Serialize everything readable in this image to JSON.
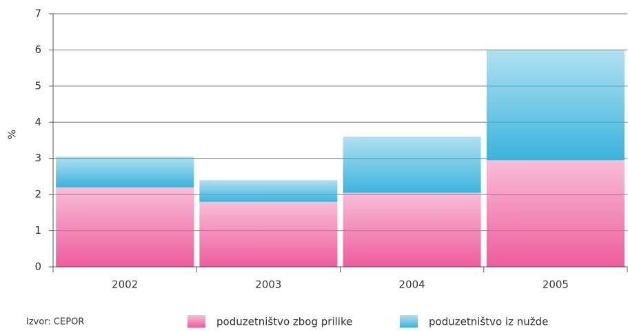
{
  "chart_data": {
    "type": "stacked_bar",
    "y_label": "%",
    "source": "Izvor: CEPOR",
    "categories": [
      "2002",
      "2003",
      "2004",
      "2005"
    ],
    "series": [
      {
        "name": "poduzetništvo zbog prilike",
        "color": "#ee5c9c",
        "values": [
          2.2,
          1.8,
          2.05,
          2.95
        ]
      },
      {
        "name": "poduzetništvo iz nužde",
        "color": "#3bb3dc",
        "values": [
          0.85,
          0.6,
          1.55,
          3.05
        ]
      }
    ],
    "ylim": [
      0,
      7
    ],
    "yticks": [
      0,
      1,
      2,
      3,
      4,
      5,
      6,
      7
    ],
    "grid": true,
    "legend": "bottom"
  }
}
